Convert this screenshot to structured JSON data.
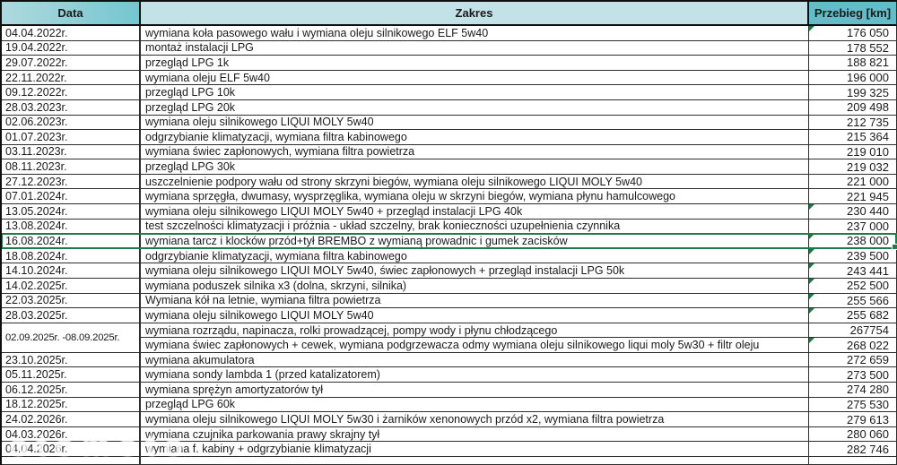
{
  "header": {
    "date_label": "Data",
    "scope_label": "Zakres",
    "mileage_label": "Przebieg [km]"
  },
  "colors": {
    "header_light": "#c2e2e8",
    "header_teal": "#62bdc9",
    "grid_line": "#2e2e2e",
    "selection_green": "#1e7a46",
    "flag_green": "#217346"
  },
  "selection": {
    "row_index": 14
  },
  "watermark": {
    "text": "otomoto"
  },
  "rows": [
    {
      "date": "04.04.2022r.",
      "zakres": "wymiana koła pasowego wału i wymiana oleju silnikowego ELF 5w40",
      "km": "176 050",
      "flag": true
    },
    {
      "date": "19.04.2022r.",
      "zakres": "montaż instalacji LPG",
      "km": "178 552"
    },
    {
      "date": "29.07.2022r.",
      "zakres": "przegląd LPG 1k",
      "km": "188 821"
    },
    {
      "date": "22.11.2022r.",
      "zakres": "wymiana oleju ELF 5w40",
      "km": "196 000"
    },
    {
      "date": "09.12.2022r.",
      "zakres": "przegląd LPG 10k",
      "km": "199 325"
    },
    {
      "date": "28.03.2023r.",
      "zakres": "przegląd LPG 20k",
      "km": "209 498"
    },
    {
      "date": "02.06.2023r.",
      "zakres": "wymiana oleju silnikowego LIQUI MOLY 5w40",
      "km": "212 735"
    },
    {
      "date": "01.07.2023r.",
      "zakres": "odgrzybianie klimatyzacji, wymiana filtra kabinowego",
      "km": "215 364"
    },
    {
      "date": "03.11.2023r.",
      "zakres": "wymiana świec zapłonowych, wymiana filtra powietrza",
      "km": "219 010"
    },
    {
      "date": "08.11.2023r.",
      "zakres": "przegląd LPG 30k",
      "km": "219 032"
    },
    {
      "date": "27.12.2023r.",
      "zakres": "uszczelnienie podpory wału od strony skrzyni biegów, wymiana oleju silnikowego LIQUI MOLY 5w40",
      "km": "221 000"
    },
    {
      "date": "07.01.2024r.",
      "zakres": "wymiana sprzęgła, dwumasy, wysprzęglika, wymiana oleju w skrzyni biegów, wymiana płynu hamulcowego",
      "km": "221 945"
    },
    {
      "date": "13.05.2024r.",
      "zakres": "wymiana oleju silnikowego LIQUI MOLY 5w40 + przegląd instalacji LPG 40k",
      "km": "230 440",
      "flag": true
    },
    {
      "date": "13.08.2024r.",
      "zakres": "test szczelności klimatyzacji i próżnia - układ szczelny, brak konieczności uzupełnienia czynnika",
      "km": "237 000"
    },
    {
      "date": "16.08.2024r.",
      "zakres": "wymiana tarcz i klocków przód+tył BREMBO z wymianą prowadnic i gumek zacisków",
      "km": "238 000",
      "flag": true
    },
    {
      "date": "18.08.2024r.",
      "zakres": "odgrzybianie klimatyzacji, wymiana filtra kabinowego",
      "km": "239 500",
      "flag": true
    },
    {
      "date": "14.10.2024r.",
      "zakres": "wymiana oleju silnikowego LIQUI MOLY 5w40, świec zapłonowych + przegląd instalacji LPG 50k",
      "km": "243 441",
      "flag": true
    },
    {
      "date": "14.02.2025r.",
      "zakres": "wymiana poduszek silnika x3 (dolna, skrzyni, silnika)",
      "km": "252 500",
      "flag": true
    },
    {
      "date": "22.03.2025r.",
      "zakres": "Wymiana kół na letnie, wymiana filtra powietrza",
      "km": "255 566",
      "flag": true
    },
    {
      "date": "28.03.2025r.",
      "zakres": "wymiana oleju silnikowego LIQUI MOLY 5w40",
      "km": "255 682",
      "flag": true
    },
    {
      "date": "02.09.2025r. -08.09.2025r.",
      "date_span": 2,
      "small_date": true,
      "zakres": "wymiana rozrządu, napinacza, rolki prowadzącej, pompy wody i płynu chłodzącego",
      "km": "267754"
    },
    {
      "date_merged": true,
      "zakres": "wymiana świec zapłonowych + cewek, wymiana podgrzewacza odmy wymiana oleju silnikowego liqui moly 5w30 + filtr oleju",
      "km": "268 022",
      "flag": true
    },
    {
      "date": "23.10.2025r.",
      "zakres": "wymiana akumulatora",
      "km": "272 659"
    },
    {
      "date": "05.11.2025r.",
      "zakres": "wymiana sondy lambda 1 (przed katalizatorem)",
      "km": "273 500"
    },
    {
      "date": "06.12.2025r.",
      "zakres": "wymiana sprężyn amortyzatorów tył",
      "km": "274 280"
    },
    {
      "date": "18.12.2025r.",
      "zakres": "przegląd LPG 60k",
      "km": "275 530"
    },
    {
      "date": "24.02.2026r.",
      "zakres": "wymiana oleju silnikowego LIQUI MOLY 5w30 i żarników xenonowych przód x2, wymiana filtra powietrza",
      "km": "279 613"
    },
    {
      "date": "04.03.2026r.",
      "zakres": "wymiana czujnika parkowania prawy skrajny tył",
      "km": "280 060"
    },
    {
      "date": "04.04.2026r.",
      "zakres": "wymiana f. kabiny + odgrzybianie klimatyzacji",
      "km": "282 746"
    }
  ]
}
